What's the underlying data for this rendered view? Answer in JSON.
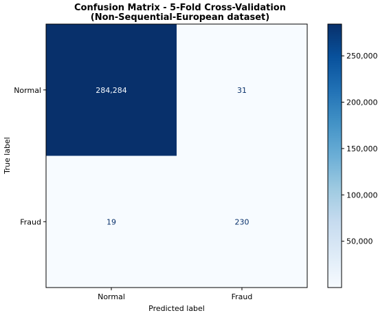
{
  "chart_data": {
    "type": "heatmap",
    "title_lines": [
      "Confusion Matrix - 5-Fold Cross-Validation",
      "(Non-Sequential-European dataset)"
    ],
    "xlabel": "Predicted label",
    "ylabel": "True label",
    "x_categories": [
      "Normal",
      "Fraud"
    ],
    "y_categories": [
      "Normal",
      "Fraud"
    ],
    "values": [
      [
        284284,
        31
      ],
      [
        19,
        230
      ]
    ],
    "cell_labels": [
      [
        "284,284",
        "31"
      ],
      [
        "19",
        "230"
      ]
    ],
    "colormap": "Blues",
    "colorbar": {
      "range": [
        19,
        284284
      ],
      "ticks": [
        50000,
        100000,
        150000,
        200000,
        250000
      ],
      "tick_labels": [
        "50,000",
        "100,000",
        "150,000",
        "200,000",
        "250,000"
      ]
    },
    "colors": {
      "high": "#08306b",
      "low": "#f7fbff",
      "text_light": "#f7fbff",
      "text_dark": "#08306b"
    }
  }
}
